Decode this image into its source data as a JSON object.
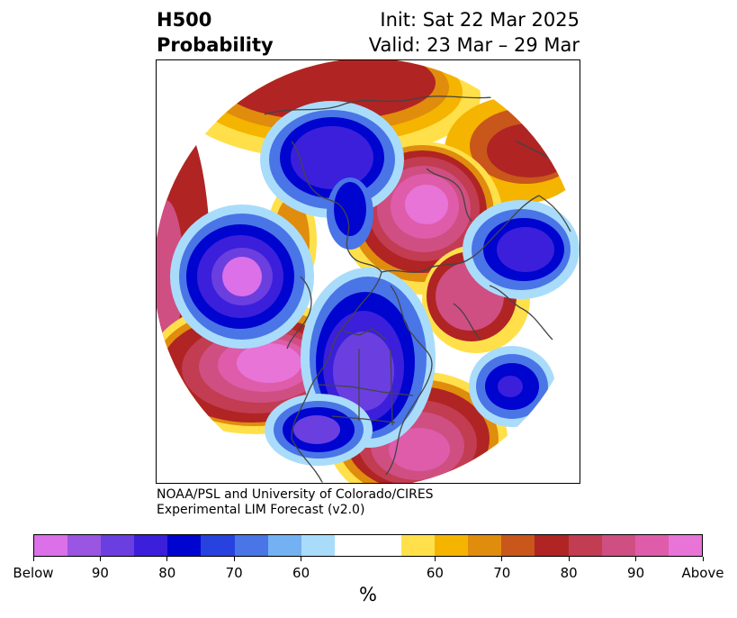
{
  "title": {
    "left_line1": "H500",
    "left_line2": "Probability",
    "right_line1": "Init: Sat 22 Mar 2025",
    "right_line2": "Valid: 23 Mar – 29 Mar"
  },
  "credit": {
    "line1": "NOAA/PSL and University of Colorado/CIRES",
    "line2": "Experimental LIM Forecast (v2.0)"
  },
  "colorbar": {
    "unit": "%",
    "colors_below": [
      "#db70e8",
      "#9a55e2",
      "#6b3ee0",
      "#3b1fdb",
      "#0004cf",
      "#2742de",
      "#4a75e6",
      "#73b1f2",
      "#a9dcfa"
    ],
    "neutral": "#ffffff",
    "colors_above": [
      "#ffe04a",
      "#f4b400",
      "#e08c0d",
      "#c9561a",
      "#b02424",
      "#c23c52",
      "#cf4f82",
      "#df5cab",
      "#e874d8"
    ],
    "tick_labels": [
      "Below",
      "90",
      "80",
      "70",
      "60",
      "60",
      "70",
      "80",
      "90",
      "Above"
    ]
  },
  "map": {
    "projection": "north-polar-stereographic",
    "variable": "500 hPa height tercile probability",
    "coastline_color": "#444444"
  }
}
